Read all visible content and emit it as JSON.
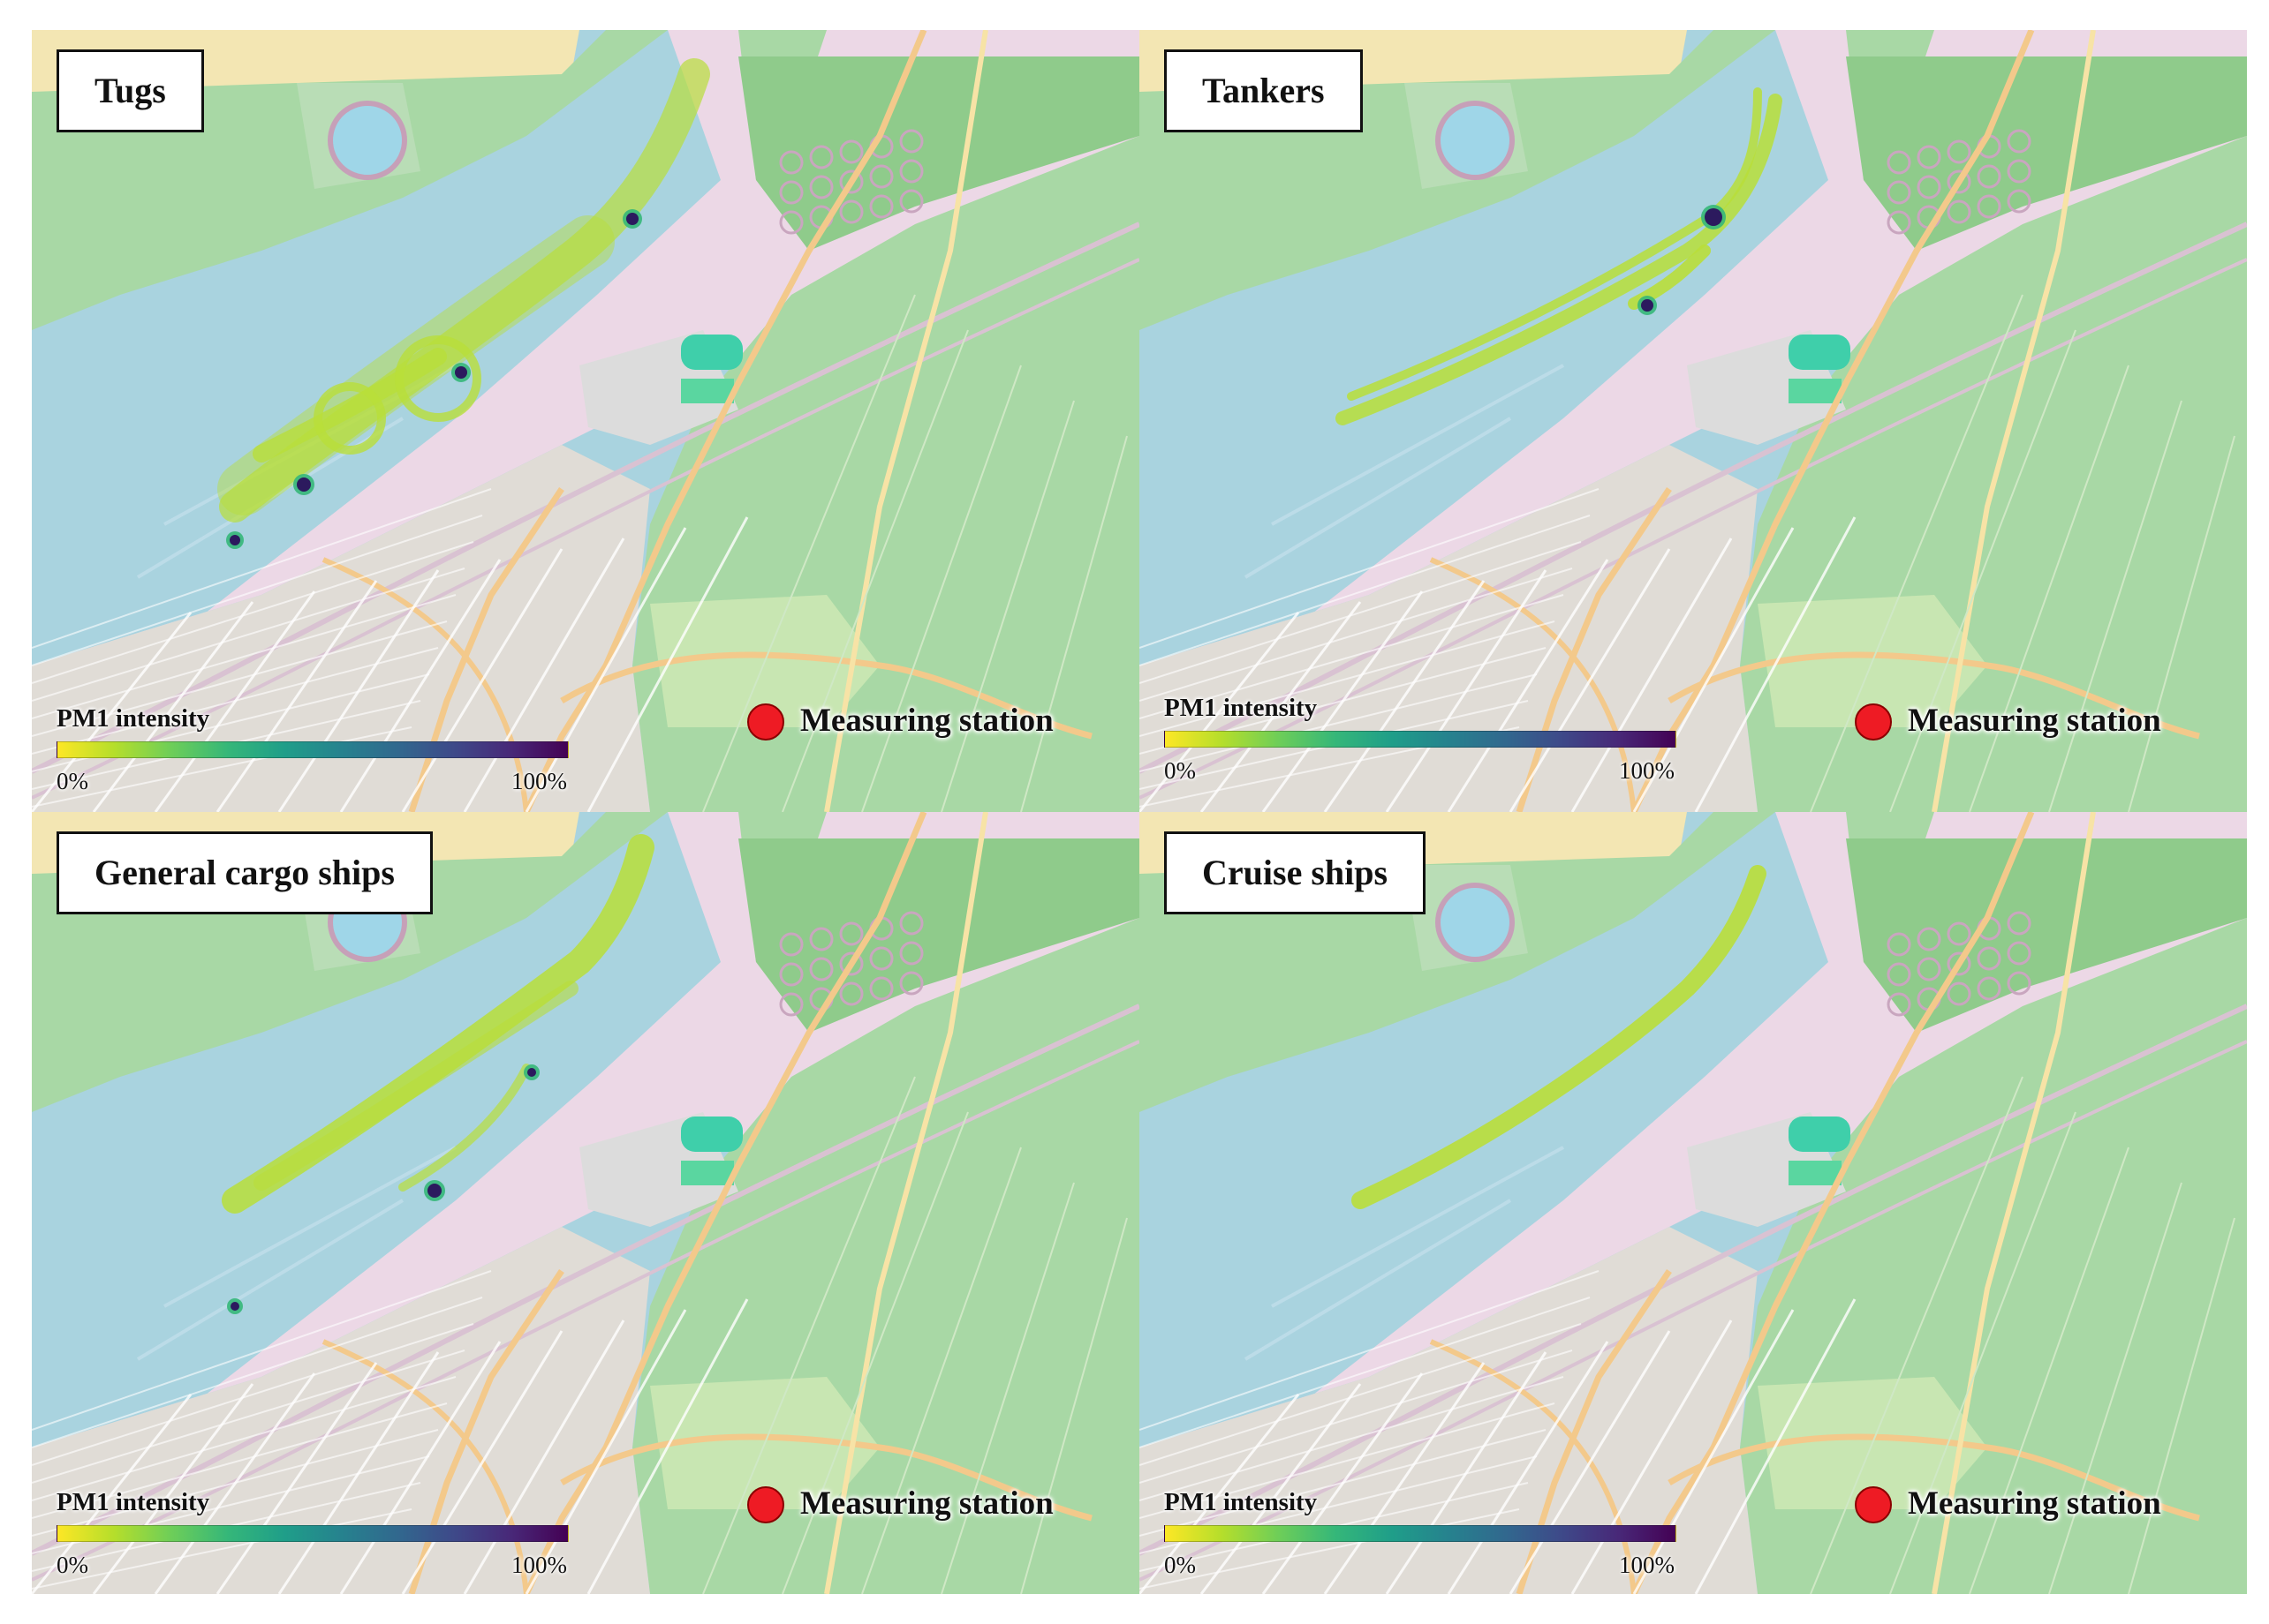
{
  "figure": {
    "panels": [
      {
        "title": "Tugs",
        "legend": {
          "label": "PM1 intensity",
          "min": "0%",
          "max": "100%"
        },
        "station": {
          "label": "Measuring station"
        }
      },
      {
        "title": "Tankers",
        "legend": {
          "label": "PM1 intensity",
          "min": "0%",
          "max": "100%"
        },
        "station": {
          "label": "Measuring station"
        }
      },
      {
        "title": "General cargo ships",
        "legend": {
          "label": "PM1 intensity",
          "min": "0%",
          "max": "100%"
        },
        "station": {
          "label": "Measuring station"
        }
      },
      {
        "title": "Cruise ships",
        "legend": {
          "label": "PM1 intensity",
          "min": "0%",
          "max": "100%"
        },
        "station": {
          "label": "Measuring station"
        }
      }
    ]
  },
  "colors": {
    "water": "#a9d3df",
    "forest": "#a8d8a5",
    "forest_dark": "#8fcb8b",
    "industrial": "#ecd8e6",
    "urban": "#e0dcd6",
    "beach": "#f3e6b3",
    "road_major": "#f3c98b",
    "road_minor": "#ffffff",
    "sports": "#3fcfaa",
    "station": "#ee1b24",
    "colormap": [
      "#fde725",
      "#b5de2b",
      "#6ece58",
      "#35b779",
      "#1f9e89",
      "#26828e",
      "#31688e",
      "#3e4989",
      "#482878",
      "#440154"
    ]
  }
}
